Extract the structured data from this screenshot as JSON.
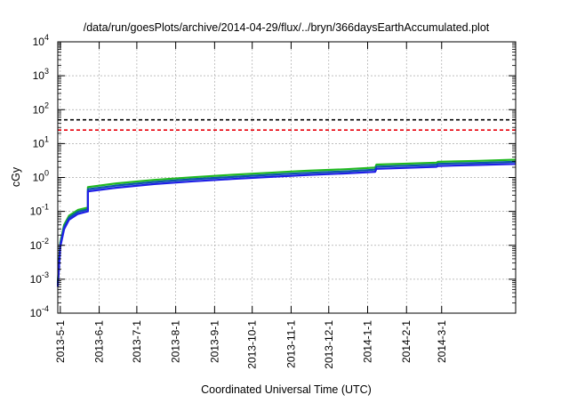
{
  "chart_data": {
    "type": "line",
    "title": "/data/run/goesPlots/archive/2014-04-29/flux/../bryn/366daysEarthAccumulated.plot",
    "xlabel": "Coordinated Universal Time (UTC)",
    "ylabel": "cGy",
    "y_scale": "log",
    "ylim": [
      0.0001,
      10000
    ],
    "xlim": [
      "2013-04-29",
      "2014-04-29"
    ],
    "grid": true,
    "x_ticks": [
      "2013-5-1",
      "2013-6-1",
      "2013-7-1",
      "2013-8-1",
      "2013-9-1",
      "2013-10-1",
      "2013-11-1",
      "2013-12-1",
      "2014-1-1",
      "2014-2-1",
      "2014-3-1"
    ],
    "y_ticks": [
      {
        "base": "10",
        "exp": "-4",
        "value": 0.0001
      },
      {
        "base": "10",
        "exp": "-3",
        "value": 0.001
      },
      {
        "base": "10",
        "exp": "-2",
        "value": 0.01
      },
      {
        "base": "10",
        "exp": "-1",
        "value": 0.1
      },
      {
        "base": "10",
        "exp": "0",
        "value": 1
      },
      {
        "base": "10",
        "exp": "1",
        "value": 10
      },
      {
        "base": "10",
        "exp": "2",
        "value": 100
      },
      {
        "base": "10",
        "exp": "3",
        "value": 1000
      },
      {
        "base": "10",
        "exp": "4",
        "value": 10000
      }
    ],
    "reference_lines": [
      {
        "value": 50,
        "color": "#000000",
        "style": "dashed"
      },
      {
        "value": 25,
        "color": "#e8000b",
        "style": "dashed"
      }
    ],
    "series": [
      {
        "color": "#21b921",
        "x": [
          "2013-04-29",
          "2013-05-01",
          "2013-05-04",
          "2013-05-08",
          "2013-05-15",
          "2013-05-23",
          "2013-05-23",
          "2013-06-15",
          "2013-07-15",
          "2013-08-15",
          "2013-09-15",
          "2013-10-15",
          "2013-11-01",
          "2013-11-15",
          "2013-12-15",
          "2014-01-07",
          "2014-01-08",
          "2014-02-01",
          "2014-02-25",
          "2014-02-26",
          "2014-03-31",
          "2014-04-29"
        ],
        "values": [
          0.0008,
          0.012,
          0.04,
          0.075,
          0.11,
          0.13,
          0.52,
          0.67,
          0.85,
          1.02,
          1.2,
          1.38,
          1.5,
          1.58,
          1.75,
          1.95,
          2.4,
          2.55,
          2.75,
          2.9,
          3.1,
          3.35
        ]
      },
      {
        "color": "#0a57a8",
        "x": [
          "2013-04-29",
          "2013-05-01",
          "2013-05-04",
          "2013-05-08",
          "2013-05-15",
          "2013-05-23",
          "2013-05-23",
          "2013-06-15",
          "2013-07-15",
          "2013-08-15",
          "2013-09-15",
          "2013-10-15",
          "2013-11-01",
          "2013-11-15",
          "2013-12-15",
          "2014-01-07",
          "2014-01-08",
          "2014-02-01",
          "2014-02-25",
          "2014-02-26",
          "2014-03-31",
          "2014-04-29"
        ],
        "values": [
          0.0007,
          0.0105,
          0.035,
          0.066,
          0.097,
          0.115,
          0.45,
          0.58,
          0.74,
          0.89,
          1.04,
          1.2,
          1.3,
          1.37,
          1.52,
          1.7,
          2.08,
          2.22,
          2.39,
          2.52,
          2.7,
          2.9
        ]
      },
      {
        "color": "#1f1fe6",
        "x": [
          "2013-04-29",
          "2013-05-01",
          "2013-05-04",
          "2013-05-08",
          "2013-05-15",
          "2013-05-23",
          "2013-05-23",
          "2013-06-15",
          "2013-07-15",
          "2013-08-15",
          "2013-09-15",
          "2013-10-15",
          "2013-11-01",
          "2013-11-15",
          "2013-12-15",
          "2014-01-07",
          "2014-01-08",
          "2014-02-01",
          "2014-02-25",
          "2014-02-26",
          "2014-03-31",
          "2014-04-29"
        ],
        "values": [
          0.0006,
          0.009,
          0.03,
          0.057,
          0.084,
          0.1,
          0.39,
          0.5,
          0.64,
          0.77,
          0.9,
          1.04,
          1.12,
          1.19,
          1.32,
          1.47,
          1.8,
          1.92,
          2.07,
          2.18,
          2.35,
          2.5
        ]
      }
    ]
  }
}
